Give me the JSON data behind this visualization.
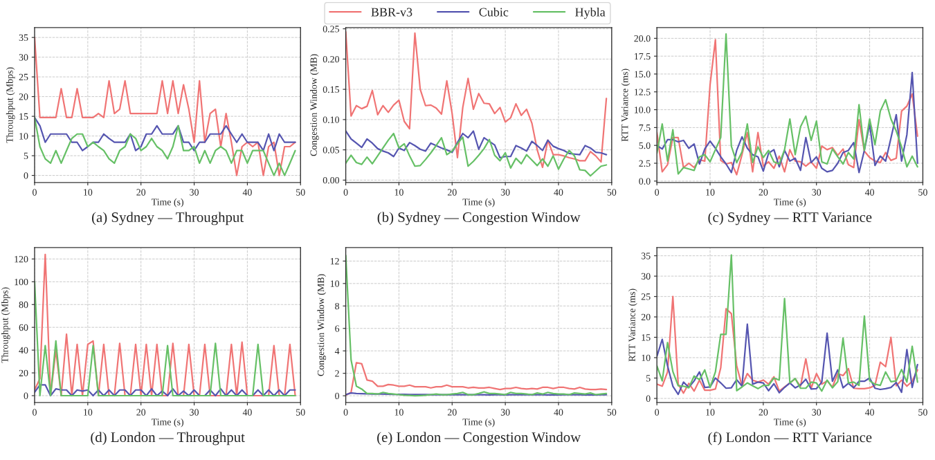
{
  "chart_data": [
    {
      "type": "line",
      "title": "(a) Sydney — Throughput",
      "xlabel": "Time (s)",
      "ylabel": "Throughput (Mbps)",
      "legend": "top",
      "grid": true,
      "xlim": [
        0,
        50
      ],
      "xticks": [
        0,
        10,
        20,
        30,
        40,
        50
      ],
      "ylim": [
        -1.8,
        37.5
      ],
      "yticks": [
        0,
        5,
        10,
        15,
        20,
        25,
        30,
        35
      ],
      "x": [
        0,
        1,
        2,
        3,
        4,
        5,
        6,
        7,
        8,
        9,
        10,
        11,
        12,
        13,
        14,
        15,
        16,
        17,
        18,
        19,
        20,
        21,
        22,
        23,
        24,
        25,
        26,
        27,
        28,
        29,
        30,
        31,
        32,
        33,
        34,
        35,
        36,
        37,
        38,
        39,
        40,
        41,
        42,
        43,
        44,
        45,
        46,
        47,
        48,
        49
      ],
      "series": [
        {
          "name": "BBR-v3",
          "color": "#f07474",
          "values": [
            35,
            14.7,
            14.7,
            14.7,
            14.7,
            22,
            14.7,
            14.7,
            22,
            14.7,
            14.7,
            14.7,
            15.7,
            14.7,
            24,
            15.7,
            16.8,
            24,
            15.7,
            15.7,
            15.7,
            15.7,
            15.7,
            15.7,
            24,
            15.7,
            24,
            15.7,
            23,
            16.8,
            8.4,
            24,
            8.4,
            15.7,
            16.8,
            7.3,
            15.7,
            8.4,
            0,
            7.3,
            8.4,
            7.3,
            8.4,
            0,
            7.3,
            8.4,
            0,
            7.3,
            7.3,
            8.4
          ]
        },
        {
          "name": "Cubic",
          "color": "#5555b0",
          "values": [
            14.7,
            12.6,
            8.4,
            10.5,
            10.5,
            10.5,
            10.5,
            8.4,
            8.4,
            6.3,
            7.3,
            8.4,
            8.4,
            10.5,
            9.4,
            8.4,
            8.4,
            8.4,
            10.5,
            6.3,
            7.3,
            10.5,
            10.5,
            12.6,
            10.5,
            10.5,
            10.5,
            12.6,
            8.4,
            8.4,
            6.3,
            8.4,
            8.4,
            10.5,
            10.5,
            10.5,
            12.6,
            10.5,
            8.4,
            10.5,
            8.4,
            8.4,
            8.4,
            6.3,
            10.5,
            6.3,
            10.5,
            8.4,
            8.4,
            8.4
          ]
        },
        {
          "name": "Hybla",
          "color": "#66c066",
          "values": [
            14.7,
            7.3,
            4.2,
            3.1,
            6.3,
            3.1,
            6.3,
            9.4,
            10.5,
            10.5,
            7.3,
            8.4,
            7.3,
            6.3,
            4.2,
            3.1,
            6.3,
            7.3,
            10.5,
            9.4,
            6.3,
            7.3,
            9.4,
            7.3,
            6.3,
            4.2,
            7.3,
            12.6,
            6.3,
            6.3,
            7.3,
            3.1,
            6.3,
            3.1,
            6.3,
            7.3,
            6.3,
            3.1,
            6.3,
            6.3,
            3.1,
            6.3,
            6.3,
            6.3,
            3.1,
            0,
            3.1,
            0,
            3.1,
            6.3
          ]
        }
      ]
    },
    {
      "type": "line",
      "title": "(b) Sydney — Congestion Window",
      "xlabel": "Time (s)",
      "ylabel": "Congestion Window (MB)",
      "grid": true,
      "xlim": [
        0,
        50
      ],
      "xticks": [
        0,
        10,
        20,
        30,
        40,
        50
      ],
      "ylim": [
        -0.004,
        0.252
      ],
      "yticks": [
        {
          "value": 0,
          "label": "0.00"
        },
        {
          "value": 0.05,
          "label": "0.05"
        },
        {
          "value": 0.1,
          "label": "0.10"
        },
        {
          "value": 0.15,
          "label": "0.15"
        },
        {
          "value": 0.2,
          "label": "0.20"
        },
        {
          "value": 0.25,
          "label": "0.25"
        }
      ],
      "x": [
        0,
        1,
        2,
        3,
        4,
        5,
        6,
        7,
        8,
        9,
        10,
        11,
        12,
        13,
        14,
        15,
        16,
        17,
        18,
        19,
        20,
        21,
        22,
        23,
        24,
        25,
        26,
        27,
        28,
        29,
        30,
        31,
        32,
        33,
        34,
        35,
        36,
        37,
        38,
        39,
        40,
        41,
        42,
        43,
        44,
        45,
        46,
        47,
        48,
        49
      ],
      "series": [
        {
          "color": "#f07474",
          "values": [
            0.245,
            0.106,
            0.123,
            0.118,
            0.122,
            0.148,
            0.108,
            0.123,
            0.112,
            0.124,
            0.132,
            0.097,
            0.085,
            0.243,
            0.15,
            0.123,
            0.124,
            0.119,
            0.109,
            0.164,
            0.11,
            0.037,
            0.12,
            0.168,
            0.117,
            0.143,
            0.127,
            0.126,
            0.11,
            0.12,
            0.096,
            0.103,
            0.126,
            0.107,
            0.117,
            0.094,
            0.05,
            0.021,
            0.066,
            0.042,
            0.042,
            0.04,
            0.037,
            0.035,
            0.032,
            0.032,
            0.047,
            0.04,
            0.03,
            0.135
          ]
        },
        {
          "color": "#5555b0",
          "values": [
            0.081,
            0.068,
            0.061,
            0.054,
            0.068,
            0.061,
            0.052,
            0.048,
            0.045,
            0.039,
            0.053,
            0.049,
            0.062,
            0.057,
            0.051,
            0.048,
            0.061,
            0.057,
            0.053,
            0.05,
            0.046,
            0.062,
            0.077,
            0.07,
            0.081,
            0.051,
            0.07,
            0.064,
            0.058,
            0.037,
            0.039,
            0.039,
            0.057,
            0.053,
            0.048,
            0.064,
            0.057,
            0.049,
            0.066,
            0.056,
            0.052,
            0.049,
            0.044,
            0.043,
            0.042,
            0.057,
            0.053,
            0.046,
            0.045,
            0.042
          ]
        },
        {
          "color": "#66c066",
          "values": [
            0.028,
            0.041,
            0.029,
            0.026,
            0.038,
            0.027,
            0.04,
            0.053,
            0.066,
            0.077,
            0.053,
            0.06,
            0.04,
            0.023,
            0.024,
            0.034,
            0.045,
            0.057,
            0.07,
            0.042,
            0.048,
            0.06,
            0.071,
            0.023,
            0.031,
            0.041,
            0.052,
            0.067,
            0.041,
            0.032,
            0.045,
            0.02,
            0.036,
            0.027,
            0.042,
            0.033,
            0.024,
            0.035,
            0.023,
            0.04,
            0.018,
            0.035,
            0.049,
            0.04,
            0.017,
            0.016,
            0.007,
            0.015,
            0.023,
            0.025
          ]
        }
      ]
    },
    {
      "type": "line",
      "title": "(c) Sydney — RTT Variance",
      "xlabel": "Time (s)",
      "ylabel": "RTT Variance (ms)",
      "grid": true,
      "xlim": [
        0,
        50
      ],
      "xticks": [
        0,
        10,
        20,
        30,
        40,
        50
      ],
      "ylim": [
        -0.2,
        21.5
      ],
      "yticks": [
        {
          "value": 0,
          "label": "0.0"
        },
        2.5,
        {
          "value": 5,
          "label": "5.0"
        },
        7.5,
        {
          "value": 10,
          "label": "10.0"
        },
        12.5,
        {
          "value": 15,
          "label": "15.0"
        },
        17.5,
        {
          "value": 20,
          "label": "20.0"
        }
      ],
      "x": [
        0,
        1,
        2,
        3,
        4,
        5,
        6,
        7,
        8,
        9,
        10,
        11,
        12,
        13,
        14,
        15,
        16,
        17,
        18,
        19,
        20,
        21,
        22,
        23,
        24,
        25,
        26,
        27,
        28,
        29,
        30,
        31,
        32,
        33,
        34,
        35,
        36,
        37,
        38,
        39,
        40,
        41,
        42,
        43,
        44,
        45,
        46,
        47,
        48,
        49
      ],
      "series": [
        {
          "color": "#f07474",
          "values": [
            6.8,
            1.3,
            2.3,
            6.1,
            6.1,
            1.9,
            2.5,
            1.9,
            3.0,
            2.8,
            13.5,
            19.8,
            2.9,
            2.4,
            2.6,
            0.9,
            3.7,
            6.8,
            1.3,
            6.8,
            2.1,
            2.7,
            1.8,
            3.5,
            1.3,
            4.4,
            2.8,
            2.7,
            2.1,
            2.7,
            1.8,
            4.9,
            4.4,
            4.7,
            3.6,
            4.5,
            2.3,
            1.9,
            8.6,
            4.2,
            3.3,
            2.8,
            2.6,
            4.0,
            2.9,
            3.2,
            9.8,
            10.5,
            12.2,
            6.3
          ]
        },
        {
          "color": "#5555b0",
          "values": [
            5.0,
            4.5,
            5.8,
            5.8,
            5.5,
            5.7,
            4.6,
            5.2,
            2.4,
            4.5,
            5.6,
            4.6,
            3.4,
            2.4,
            1.2,
            4.3,
            6.2,
            4.6,
            3.7,
            3.4,
            1.4,
            3.9,
            4.4,
            2.0,
            4.3,
            2.8,
            3.2,
            1.5,
            6.1,
            2.6,
            3.4,
            1.8,
            1.3,
            1.5,
            2.5,
            4.0,
            4.3,
            5.4,
            1.2,
            4.3,
            8.0,
            2.2,
            3.5,
            2.8,
            6.0,
            9.3,
            2.8,
            6.5,
            15.2,
            2.5
          ]
        },
        {
          "color": "#66c066",
          "values": [
            3.9,
            8.0,
            2.8,
            7.2,
            1.0,
            1.9,
            1.7,
            1.5,
            3.4,
            3.7,
            2.7,
            4.4,
            6.1,
            20.6,
            4.9,
            2.6,
            4.1,
            8.0,
            2.6,
            4.8,
            3.3,
            4.3,
            2.7,
            2.4,
            4.4,
            8.7,
            3.7,
            7.6,
            9.1,
            5.7,
            8.4,
            2.7,
            2.4,
            4.5,
            3.4,
            2.4,
            4.0,
            3.1,
            10.7,
            4.3,
            8.7,
            5.1,
            9.8,
            11.4,
            8.7,
            7.0,
            4.8,
            2.0,
            3.5,
            2.0
          ]
        }
      ]
    },
    {
      "type": "line",
      "title": "(d) London — Throughput",
      "xlabel": "Time (s)",
      "ylabel": "Throughput (Mbps)",
      "grid": true,
      "xlim": [
        0,
        50
      ],
      "xticks": [
        0,
        10,
        20,
        30,
        40,
        50
      ],
      "ylim": [
        -6,
        130
      ],
      "yticks": [
        0,
        20,
        40,
        60,
        80,
        100,
        120
      ],
      "x": [
        0,
        1,
        2,
        3,
        4,
        5,
        6,
        7,
        8,
        9,
        10,
        11,
        12,
        13,
        14,
        15,
        16,
        17,
        18,
        19,
        20,
        21,
        22,
        23,
        24,
        25,
        26,
        27,
        28,
        29,
        30,
        31,
        32,
        33,
        34,
        35,
        36,
        37,
        38,
        39,
        40,
        41,
        42,
        43,
        44,
        45,
        46,
        47,
        48,
        49
      ],
      "series": [
        {
          "color": "#f07474",
          "values": [
            5,
            15,
            124,
            0,
            40,
            0,
            54,
            0,
            45,
            0,
            45,
            48,
            0,
            45,
            0,
            0,
            46,
            0,
            0,
            45,
            0,
            45,
            0,
            45,
            0,
            0,
            46,
            0,
            0,
            45,
            0,
            0,
            45,
            0,
            0,
            0,
            0,
            45,
            0,
            47,
            0,
            0,
            0,
            0,
            0,
            44,
            0,
            0,
            45,
            0
          ]
        },
        {
          "color": "#5555b0",
          "values": [
            3,
            9.5,
            9.5,
            0,
            6,
            5,
            5,
            0,
            5,
            4,
            5,
            0,
            5,
            0,
            5,
            0,
            5,
            5,
            0,
            5,
            5,
            0,
            6,
            0,
            4,
            0,
            6,
            0,
            4,
            0,
            5,
            0,
            0,
            5,
            0,
            6,
            0,
            5,
            0,
            5,
            0,
            0,
            5,
            0,
            5,
            0,
            5,
            0,
            5,
            5
          ]
        },
        {
          "color": "#66c066",
          "values": [
            100,
            0,
            44,
            0,
            48,
            0,
            0,
            0,
            0,
            0,
            0,
            44,
            0,
            0,
            0,
            0,
            0,
            0,
            0,
            0,
            0,
            0,
            0,
            0,
            0,
            44,
            0,
            0,
            0,
            0,
            0,
            0,
            0,
            0,
            46,
            0,
            0,
            0,
            0,
            0,
            0,
            0,
            45,
            0,
            0,
            0,
            0,
            0,
            0,
            0
          ]
        }
      ]
    },
    {
      "type": "line",
      "title": "(e) London — Congestion Window",
      "xlabel": "Time (s)",
      "ylabel": "Congestion Window (MB)",
      "grid": true,
      "xlim": [
        0,
        50
      ],
      "xticks": [
        0,
        10,
        20,
        30,
        40,
        50
      ],
      "ylim": [
        -0.6,
        13.2
      ],
      "yticks": [
        0,
        2,
        4,
        6,
        8,
        10,
        12
      ],
      "x": [
        0,
        1,
        2,
        3,
        4,
        5,
        6,
        7,
        8,
        9,
        10,
        11,
        12,
        13,
        14,
        15,
        16,
        17,
        18,
        19,
        20,
        21,
        22,
        23,
        24,
        25,
        26,
        27,
        28,
        29,
        30,
        31,
        32,
        33,
        34,
        35,
        36,
        37,
        38,
        39,
        40,
        41,
        42,
        43,
        44,
        45,
        46,
        47,
        48,
        49
      ],
      "series": [
        {
          "color": "#f07474",
          "values": [
            0.05,
            0.3,
            2.95,
            2.85,
            1.4,
            1.3,
            0.85,
            0.85,
            1.0,
            0.95,
            0.85,
            0.85,
            0.95,
            0.8,
            0.8,
            0.8,
            0.7,
            0.8,
            0.8,
            0.95,
            0.8,
            0.8,
            0.8,
            0.7,
            0.75,
            0.7,
            0.7,
            0.75,
            0.65,
            0.55,
            0.65,
            0.65,
            0.75,
            0.65,
            0.6,
            0.65,
            0.6,
            0.75,
            0.75,
            0.65,
            0.75,
            0.75,
            0.65,
            0.6,
            0.75,
            0.6,
            0.55,
            0.55,
            0.6,
            0.55
          ]
        },
        {
          "color": "#5555b0",
          "values": [
            0.1,
            0.25,
            0.2,
            0.18,
            0.17,
            0.15,
            0.15,
            0.15,
            0.14,
            0.13,
            0.12,
            0.12,
            0.11,
            0.11,
            0.11,
            0.11,
            0.1,
            0.1,
            0.1,
            0.1,
            0.1,
            0.1,
            0.1,
            0.1,
            0.1,
            0.1,
            0.1,
            0.08,
            0.1,
            0.1,
            0.08,
            0.1,
            0.1,
            0.1,
            0.1,
            0.1,
            0.1,
            0.1,
            0.08,
            0.1,
            0.08,
            0.1,
            0.1,
            0.1,
            0.1,
            0.08,
            0.1,
            0.08,
            0.1,
            0.1
          ]
        },
        {
          "color": "#66c066",
          "values": [
            12.5,
            3.2,
            0.85,
            0.6,
            0.2,
            0.2,
            0.15,
            0.3,
            0.2,
            0.15,
            0.1,
            0.05,
            0.03,
            0.0,
            0.02,
            0.05,
            0.1,
            0.15,
            0.1,
            0.1,
            0.15,
            0.2,
            0.3,
            0.1,
            0.1,
            0.2,
            0.35,
            0.2,
            0.2,
            0.15,
            0.1,
            0.3,
            0.2,
            0.2,
            0.15,
            0.1,
            0.25,
            0.15,
            0.3,
            0.2,
            0.15,
            0.15,
            0.1,
            0.25,
            0.2,
            0.15,
            0.25,
            0.1,
            0.15,
            0.2
          ]
        }
      ]
    },
    {
      "type": "line",
      "title": "(f) London — RTT Variance",
      "xlabel": "Time (s)",
      "ylabel": "RTT Variance (ms)",
      "grid": true,
      "xlim": [
        0,
        50
      ],
      "xticks": [
        0,
        10,
        20,
        30,
        40,
        50
      ],
      "ylim": [
        -1,
        37
      ],
      "yticks": [
        0,
        5,
        10,
        15,
        20,
        25,
        30,
        35
      ],
      "x": [
        0,
        1,
        2,
        3,
        4,
        5,
        6,
        7,
        8,
        9,
        10,
        11,
        12,
        13,
        14,
        15,
        16,
        17,
        18,
        19,
        20,
        21,
        22,
        23,
        24,
        25,
        26,
        27,
        28,
        29,
        30,
        31,
        32,
        33,
        34,
        35,
        36,
        37,
        38,
        39,
        40,
        41,
        42,
        43,
        44,
        45,
        46,
        47,
        48,
        49
      ],
      "series": [
        {
          "color": "#f07474",
          "values": [
            3.5,
            3.0,
            6.5,
            25,
            3.5,
            1.3,
            3.7,
            1.8,
            4.5,
            2.0,
            2.0,
            2.3,
            7.5,
            22,
            20.8,
            8,
            3,
            6.1,
            4.5,
            4,
            4.5,
            3.5,
            5.3,
            1.8,
            2.8,
            3.8,
            4.8,
            3,
            9.7,
            2.5,
            6.1,
            3.5,
            4.3,
            2.8,
            6.1,
            5.6,
            7.3,
            2.5,
            2.4,
            2.4,
            2.6,
            3.2,
            8.9,
            7.8,
            15,
            3.1,
            4.5,
            3,
            4.2,
            7
          ]
        },
        {
          "color": "#5555b0",
          "values": [
            10.3,
            14.5,
            8,
            3,
            1,
            4,
            2.7,
            4.3,
            6.5,
            2.7,
            2.8,
            5,
            3.8,
            2.5,
            2.6,
            4.6,
            3,
            18.2,
            3.5,
            4,
            3.8,
            1.9,
            3.6,
            1.4,
            2.7,
            3.8,
            2.6,
            3.3,
            4.7,
            2.3,
            2.4,
            4,
            16,
            4.2,
            7,
            2.6,
            3.7,
            2.6,
            4.2,
            4.2,
            5,
            2.5,
            2.2,
            2.4,
            2.7,
            3.9,
            1.5,
            12,
            2.7,
            8.3
          ]
        },
        {
          "color": "#66c066",
          "values": [
            8,
            4.3,
            13.7,
            6.6,
            3.1,
            3,
            2.6,
            5.5,
            4.6,
            7,
            2.7,
            6.5,
            15.7,
            15.7,
            35.2,
            1.9,
            2.8,
            3.8,
            3.1,
            2.4,
            3.2,
            3.2,
            5,
            4.5,
            24.5,
            3.8,
            4.9,
            2.5,
            2.5,
            4,
            3.8,
            1.8,
            4.5,
            2.6,
            4.1,
            14.8,
            3.8,
            4,
            3.2,
            20.2,
            4.3,
            3.5,
            3.2,
            6.5,
            4.1,
            4.3,
            7.1,
            4,
            12.8,
            4
          ]
        }
      ]
    }
  ]
}
